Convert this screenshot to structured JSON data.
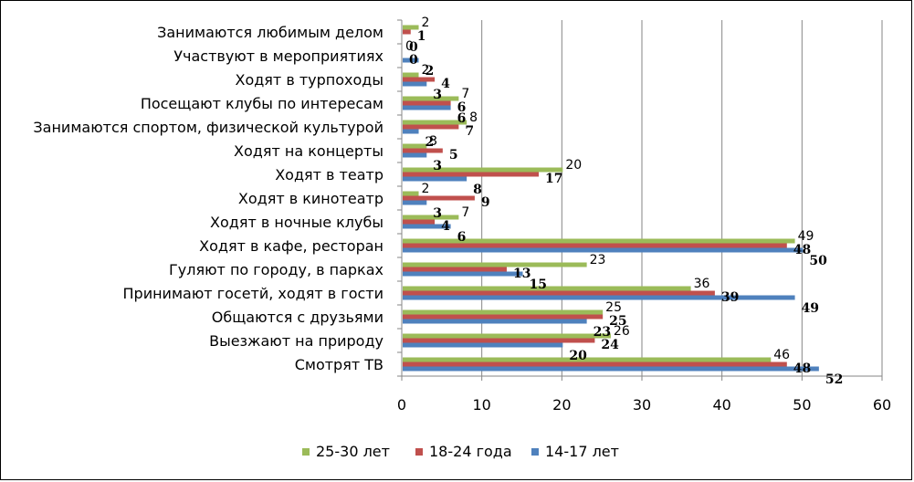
{
  "chart_data": {
    "type": "bar",
    "orientation": "horizontal",
    "categories": [
      "Смотрят ТВ",
      "Выезжают на природу",
      "Общаются с друзьями",
      "Принимают госетй, ходят в гости",
      "Гуляют по городу, в парках",
      "Ходят в кафе, ресторан",
      "Ходят в ночные клубы",
      "Ходят в кинотеатр",
      "Ходят в театр",
      "Ходят на концерты",
      "Занимаются спортом, физической культурой",
      "Посещают клубы по интересам",
      "Ходят в турпоходы",
      "Участвуют в мероприятиях",
      "Занимаются любимым делом"
    ],
    "series": [
      {
        "name": "14-17 лет",
        "color": "#4f81bd",
        "values": [
          52,
          20,
          23,
          49,
          15,
          50,
          6,
          3,
          8,
          3,
          2,
          6,
          3,
          2,
          0
        ]
      },
      {
        "name": "18-24 года",
        "color": "#c0504d",
        "values": [
          48,
          24,
          25,
          39,
          13,
          48,
          4,
          9,
          17,
          5,
          7,
          6,
          4,
          0,
          1
        ]
      },
      {
        "name": "25-30 лет",
        "color": "#9bbb59",
        "values": [
          46,
          26,
          25,
          36,
          23,
          49,
          7,
          2,
          20,
          3,
          8,
          7,
          2,
          0,
          2
        ]
      }
    ],
    "data_label_strings": [
      [
        "52",
        "20",
        "23",
        "49",
        "15",
        "50",
        "6",
        "3",
        "8",
        "3",
        "2",
        "6",
        "3",
        "2",
        "0"
      ],
      [
        "48",
        "24",
        "25",
        "39",
        "13",
        "48",
        "4",
        "9",
        "17",
        "5",
        "7",
        "6",
        "4",
        "0",
        "1"
      ],
      [
        "46",
        "26",
        "25",
        "36",
        "23",
        "49",
        "7",
        "2",
        "20",
        "3",
        "8",
        "7",
        "2",
        "0",
        "2"
      ]
    ],
    "xlim": [
      0,
      60
    ],
    "x_ticks": [
      "0",
      "10",
      "20",
      "30",
      "40",
      "50",
      "60"
    ],
    "grid": "vertical",
    "legend_position": "bottom",
    "legend_order": [
      2,
      1,
      0
    ],
    "title": "",
    "xlabel": "",
    "ylabel": ""
  }
}
